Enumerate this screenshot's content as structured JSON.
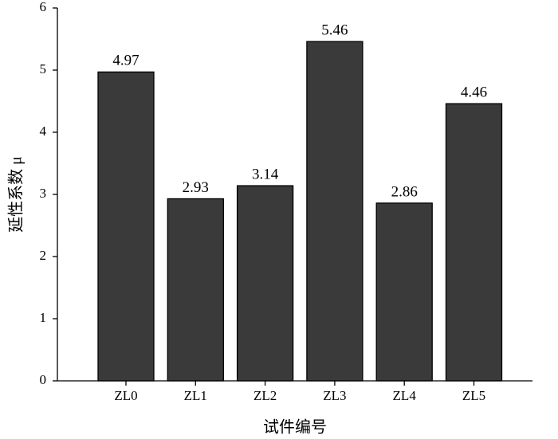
{
  "chart_data": {
    "type": "bar",
    "categories": [
      "ZL0",
      "ZL1",
      "ZL2",
      "ZL3",
      "ZL4",
      "ZL5"
    ],
    "values": [
      4.97,
      2.93,
      3.14,
      5.46,
      2.86,
      4.46
    ],
    "color": "#3a3a3a",
    "ylim": [
      0,
      6
    ],
    "yticks": [
      0,
      1,
      2,
      3,
      4,
      5,
      6
    ],
    "xlabel": "试件编号",
    "ylabel": "延性系数 μ"
  }
}
